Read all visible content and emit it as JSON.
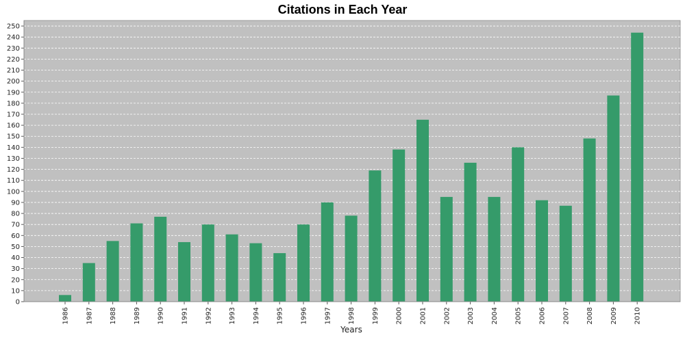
{
  "chart_data": {
    "type": "bar",
    "title": "Citations in Each Year",
    "xlabel": "Years",
    "ylabel": "",
    "categories": [
      "1986",
      "1987",
      "1988",
      "1989",
      "1990",
      "1991",
      "1992",
      "1993",
      "1994",
      "1995",
      "1996",
      "1997",
      "1998",
      "1999",
      "2000",
      "2001",
      "2002",
      "2003",
      "2004",
      "2005",
      "2006",
      "2007",
      "2008",
      "2009",
      "2010"
    ],
    "values": [
      6,
      35,
      55,
      71,
      77,
      54,
      70,
      61,
      53,
      44,
      70,
      90,
      78,
      119,
      138,
      165,
      95,
      126,
      95,
      140,
      92,
      87,
      148,
      187,
      244
    ],
    "ylim": [
      0,
      255
    ],
    "yticks": [
      0,
      10,
      20,
      30,
      40,
      50,
      60,
      70,
      80,
      90,
      100,
      110,
      120,
      130,
      140,
      150,
      160,
      170,
      180,
      190,
      200,
      210,
      220,
      230,
      240,
      250
    ],
    "grid": true,
    "colors": {
      "bar": "#359b6a",
      "plot_background": "#c0c0c0",
      "gridline": "#ffffff"
    }
  }
}
